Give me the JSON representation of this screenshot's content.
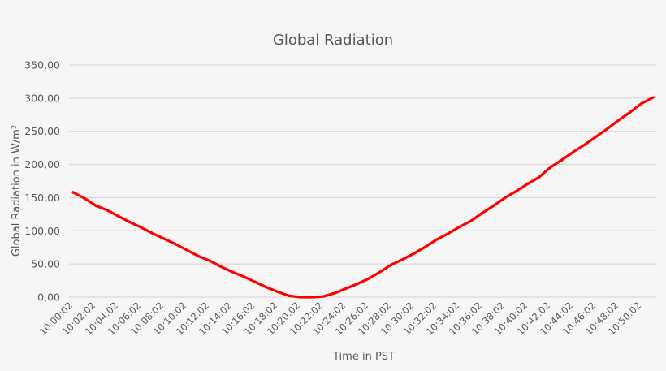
{
  "chart_data": {
    "type": "line",
    "title": "Global Radiation",
    "xlabel": "Time in PST",
    "ylabel": "Global Radiation in W/m²",
    "ylim": [
      0,
      350
    ],
    "yticks": [
      "0,00",
      "50,00",
      "100,00",
      "150,00",
      "200,00",
      "250,00",
      "300,00",
      "350,00"
    ],
    "ytick_values": [
      0,
      50,
      100,
      150,
      200,
      250,
      300,
      350
    ],
    "grid": true,
    "legend": "none",
    "line_color": "#ff0000",
    "categories": [
      "10:00:02",
      "10:01:02",
      "10:02:02",
      "10:03:02",
      "10:04:02",
      "10:05:02",
      "10:06:02",
      "10:07:02",
      "10:08:02",
      "10:09:02",
      "10:10:02",
      "10:11:02",
      "10:12:02",
      "10:13:02",
      "10:14:02",
      "10:15:02",
      "10:16:02",
      "10:17:02",
      "10:18:02",
      "10:19:02",
      "10:20:02",
      "10:21:02",
      "10:22:02",
      "10:23:02",
      "10:24:02",
      "10:25:02",
      "10:26:02",
      "10:27:02",
      "10:28:02",
      "10:29:02",
      "10:30:02",
      "10:31:02",
      "10:32:02",
      "10:33:02",
      "10:34:02",
      "10:35:02",
      "10:36:02",
      "10:37:02",
      "10:38:02",
      "10:39:02",
      "10:40:02",
      "10:41:02",
      "10:42:02",
      "10:43:02",
      "10:44:02",
      "10:45:02",
      "10:46:02",
      "10:47:02",
      "10:48:02",
      "10:49:02",
      "10:50:02",
      "10:51:02"
    ],
    "xtick_labels": [
      "10:00:02",
      "10:02:02",
      "10:04:02",
      "10:06:02",
      "10:08:02",
      "10:10:02",
      "10:12:02",
      "10:14:02",
      "10:16:02",
      "10:18:02",
      "10:20:02",
      "10:22:02",
      "10:24:02",
      "10:26:02",
      "10:28:02",
      "10:30:02",
      "10:32:02",
      "10:34:02",
      "10:36:02",
      "10:38:02",
      "10:40:02",
      "10:42:02",
      "10:44:02",
      "10:46:02",
      "10:48:02",
      "10:50:02"
    ],
    "series": [
      {
        "values": [
          158,
          149,
          138,
          131,
          122,
          113,
          105,
          96,
          88,
          80,
          71,
          62,
          55,
          46,
          38,
          31,
          23,
          15,
          8,
          2,
          0,
          0,
          1,
          6,
          13,
          20,
          28,
          38,
          49,
          57,
          66,
          76,
          87,
          96,
          106,
          115,
          127,
          138,
          150,
          160,
          171,
          181,
          196,
          207,
          219,
          230,
          242,
          254,
          267,
          279,
          292,
          301
        ]
      }
    ]
  }
}
